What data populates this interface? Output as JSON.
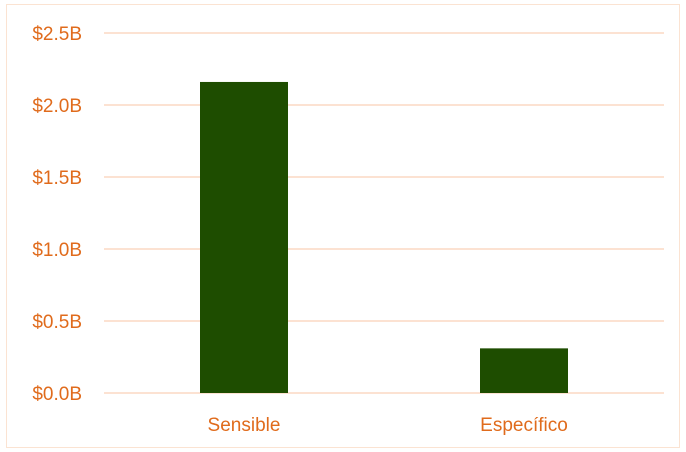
{
  "chart_data": {
    "type": "bar",
    "categories": [
      "Sensible",
      "Específico"
    ],
    "values": [
      2.16,
      0.31
    ],
    "ylim": [
      0,
      2.5
    ],
    "yticks": [
      0,
      0.5,
      1.0,
      1.5,
      2.0,
      2.5
    ],
    "ytick_labels": [
      "$0.0B",
      "$0.5B",
      "$1.0B",
      "$1.5B",
      "$2.0B",
      "$2.5B"
    ],
    "grid": true,
    "colors": {
      "bar": "#1e4d00",
      "gridline": "#fcd9c3",
      "axis_text": "#e06b1c"
    }
  }
}
